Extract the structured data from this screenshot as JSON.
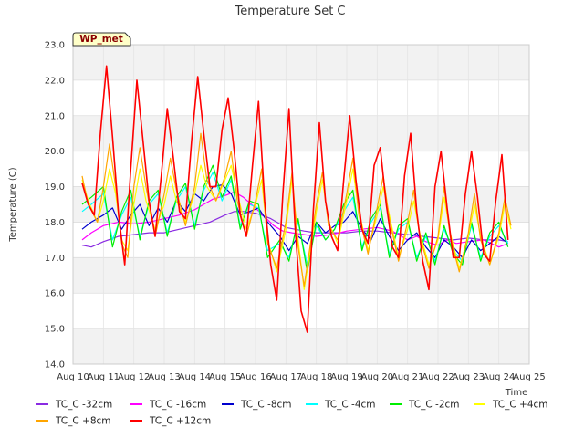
{
  "chart_data": {
    "type": "line",
    "title": "Temperature Set C",
    "xlabel": "Time",
    "ylabel": "Temperature (C)",
    "badge": "WP_met",
    "ylim": [
      14.0,
      23.0
    ],
    "yticks": [
      "14.0",
      "15.0",
      "16.0",
      "17.0",
      "18.0",
      "19.0",
      "20.0",
      "21.0",
      "22.0",
      "23.0"
    ],
    "xlim": [
      10,
      25
    ],
    "xticks": [
      {
        "v": 10,
        "label": "Aug 10"
      },
      {
        "v": 11,
        "label": "Aug 11"
      },
      {
        "v": 12,
        "label": "Aug 12"
      },
      {
        "v": 13,
        "label": "Aug 13"
      },
      {
        "v": 14,
        "label": "Aug 14"
      },
      {
        "v": 15,
        "label": "Aug 15"
      },
      {
        "v": 16,
        "label": "Aug 16"
      },
      {
        "v": 17,
        "label": "Aug 17"
      },
      {
        "v": 18,
        "label": "Aug 18"
      },
      {
        "v": 19,
        "label": "Aug 19"
      },
      {
        "v": 20,
        "label": "Aug 20"
      },
      {
        "v": 21,
        "label": "Aug 21"
      },
      {
        "v": 22,
        "label": "Aug 22"
      },
      {
        "v": 23,
        "label": "Aug 23"
      },
      {
        "v": 24,
        "label": "Aug 24"
      },
      {
        "v": 25,
        "label": "Aug 25"
      }
    ],
    "grid": true,
    "band_colors": [
      "#f2f2f2",
      "#ffffff"
    ],
    "legend_position": "bottom",
    "series": [
      {
        "name": "TC_C -32cm",
        "color": "#8a2be2",
        "x": [
          10.3,
          10.6,
          11.0,
          11.5,
          12.0,
          12.5,
          13.0,
          13.5,
          14.0,
          14.5,
          15.0,
          15.3,
          15.6,
          16.0,
          16.2,
          16.5,
          16.8,
          17.0,
          17.3,
          17.6,
          18.0,
          18.5,
          19.0,
          19.5,
          20.0,
          20.5,
          21.0,
          21.5,
          22.0,
          22.5,
          23.0,
          23.5,
          24.0,
          24.3
        ],
        "y": [
          17.35,
          17.3,
          17.45,
          17.6,
          17.65,
          17.7,
          17.7,
          17.8,
          17.9,
          18.0,
          18.2,
          18.3,
          18.3,
          18.25,
          18.2,
          18.1,
          17.95,
          17.85,
          17.8,
          17.75,
          17.7,
          17.7,
          17.7,
          17.75,
          17.75,
          17.7,
          17.65,
          17.6,
          17.55,
          17.5,
          17.55,
          17.5,
          17.5,
          17.45
        ]
      },
      {
        "name": "TC_C -16cm",
        "color": "#ff00ff",
        "x": [
          10.3,
          10.6,
          11.0,
          11.5,
          12.0,
          12.5,
          13.0,
          13.5,
          14.0,
          14.3,
          14.6,
          15.0,
          15.3,
          15.6,
          16.0,
          16.3,
          16.6,
          16.9,
          17.2,
          17.6,
          18.0,
          18.5,
          19.0,
          19.5,
          20.0,
          20.5,
          21.0,
          21.3,
          21.6,
          22.0,
          22.3,
          22.6,
          23.0,
          23.5,
          24.0,
          24.3
        ],
        "y": [
          17.5,
          17.7,
          17.9,
          18.0,
          17.95,
          18.0,
          18.1,
          18.2,
          18.35,
          18.5,
          18.65,
          18.75,
          18.85,
          18.7,
          18.4,
          18.15,
          17.9,
          17.75,
          17.7,
          17.65,
          17.6,
          17.65,
          17.75,
          17.8,
          17.85,
          17.75,
          17.5,
          17.6,
          17.45,
          17.35,
          17.5,
          17.4,
          17.45,
          17.5,
          17.3,
          17.4
        ]
      },
      {
        "name": "TC_C -8cm",
        "color": "#0000cd",
        "x": [
          10.3,
          10.6,
          11.0,
          11.3,
          11.6,
          11.9,
          12.2,
          12.5,
          12.8,
          13.1,
          13.4,
          13.7,
          14.0,
          14.3,
          14.6,
          14.9,
          15.2,
          15.5,
          15.8,
          16.1,
          16.4,
          16.8,
          17.1,
          17.4,
          17.7,
          18.0,
          18.3,
          18.6,
          18.9,
          19.2,
          19.5,
          19.8,
          20.1,
          20.4,
          20.7,
          21.0,
          21.3,
          21.6,
          21.9,
          22.2,
          22.5,
          22.8,
          23.1,
          23.4,
          23.7,
          24.0,
          24.3
        ],
        "y": [
          17.8,
          18.0,
          18.2,
          18.4,
          17.8,
          18.2,
          18.5,
          17.9,
          18.4,
          18.0,
          18.6,
          18.3,
          18.8,
          18.6,
          19.0,
          19.05,
          18.8,
          18.2,
          18.3,
          18.4,
          18.0,
          17.6,
          17.2,
          17.6,
          17.4,
          18.0,
          17.7,
          17.9,
          18.0,
          18.3,
          17.8,
          17.5,
          18.1,
          17.6,
          17.2,
          17.5,
          17.7,
          17.3,
          17.0,
          17.5,
          17.3,
          17.0,
          17.5,
          17.2,
          17.4,
          17.6,
          17.4
        ]
      },
      {
        "name": "TC_C -4cm",
        "color": "#00ffff",
        "x": [
          10.3,
          10.6,
          11.0,
          11.3,
          11.6,
          11.9,
          12.2,
          12.5,
          12.8,
          13.1,
          13.4,
          13.7,
          14.0,
          14.3,
          14.6,
          14.9,
          15.2,
          15.5,
          15.8,
          16.1,
          16.4,
          16.8,
          17.1,
          17.4,
          17.7,
          18.0,
          18.3,
          18.6,
          18.9,
          19.2,
          19.5,
          19.8,
          20.1,
          20.4,
          20.7,
          21.0,
          21.3,
          21.6,
          21.9,
          22.2,
          22.5,
          22.8,
          23.1,
          23.4,
          23.7,
          24.0,
          24.3
        ],
        "y": [
          18.3,
          18.5,
          18.8,
          17.5,
          18.2,
          18.7,
          17.6,
          18.5,
          18.8,
          17.7,
          18.6,
          19.0,
          17.9,
          18.9,
          19.4,
          18.6,
          19.2,
          17.9,
          18.5,
          18.4,
          17.2,
          17.4,
          17.0,
          18.0,
          16.8,
          17.9,
          17.5,
          17.8,
          18.3,
          18.7,
          17.3,
          18.0,
          18.4,
          17.1,
          17.8,
          18.0,
          17.0,
          17.6,
          16.9,
          17.8,
          17.2,
          16.9,
          17.9,
          17.0,
          17.6,
          17.9,
          17.4
        ]
      },
      {
        "name": "TC_C -2cm",
        "color": "#00ee00",
        "x": [
          10.3,
          10.6,
          11.0,
          11.3,
          11.6,
          11.9,
          12.2,
          12.5,
          12.8,
          13.1,
          13.4,
          13.7,
          14.0,
          14.3,
          14.6,
          14.9,
          15.2,
          15.5,
          15.8,
          16.1,
          16.4,
          16.8,
          17.1,
          17.4,
          17.7,
          18.0,
          18.3,
          18.6,
          18.9,
          19.2,
          19.5,
          19.8,
          20.1,
          20.4,
          20.7,
          21.0,
          21.3,
          21.6,
          21.9,
          22.2,
          22.5,
          22.8,
          23.1,
          23.4,
          23.7,
          24.0,
          24.3
        ],
        "y": [
          18.5,
          18.7,
          19.0,
          17.3,
          18.3,
          18.9,
          17.5,
          18.6,
          18.9,
          17.6,
          18.7,
          19.1,
          17.8,
          19.0,
          19.6,
          18.7,
          19.3,
          17.8,
          18.6,
          18.5,
          17.0,
          17.5,
          16.9,
          18.1,
          16.6,
          18.0,
          17.5,
          17.8,
          18.5,
          18.9,
          17.2,
          18.1,
          18.5,
          17.0,
          17.9,
          18.1,
          16.9,
          17.7,
          16.8,
          17.9,
          17.1,
          16.8,
          18.0,
          16.9,
          17.7,
          18.0,
          17.3
        ]
      },
      {
        "name": "TC_C +4cm",
        "color": "#ffff00",
        "x": [
          10.3,
          10.5,
          10.8,
          11.0,
          11.2,
          11.4,
          11.6,
          11.8,
          12.0,
          12.2,
          12.4,
          12.7,
          13.0,
          13.2,
          13.4,
          13.7,
          14.0,
          14.2,
          14.4,
          14.7,
          15.0,
          15.2,
          15.4,
          15.7,
          16.0,
          16.2,
          16.4,
          16.7,
          17.0,
          17.2,
          17.4,
          17.6,
          18.0,
          18.2,
          18.4,
          18.7,
          19.0,
          19.2,
          19.4,
          19.7,
          20.0,
          20.2,
          20.4,
          20.7,
          21.0,
          21.2,
          21.4,
          21.7,
          22.0,
          22.2,
          22.4,
          22.7,
          23.0,
          23.2,
          23.4,
          23.7,
          24.0,
          24.2,
          24.4
        ],
        "y": [
          19.2,
          18.6,
          18.0,
          18.6,
          19.5,
          18.8,
          17.5,
          17.2,
          18.5,
          19.5,
          18.6,
          17.8,
          18.5,
          19.3,
          18.6,
          18.0,
          18.8,
          19.6,
          19.0,
          18.6,
          19.2,
          19.6,
          18.8,
          17.8,
          18.5,
          19.2,
          17.5,
          16.6,
          17.8,
          19.2,
          17.5,
          16.1,
          18.3,
          19.2,
          18.0,
          17.4,
          18.6,
          19.5,
          18.3,
          17.2,
          18.2,
          19.0,
          18.2,
          17.0,
          17.8,
          18.6,
          17.7,
          16.8,
          17.5,
          18.7,
          17.7,
          16.7,
          17.6,
          18.5,
          17.6,
          16.8,
          17.6,
          18.5,
          17.8
        ]
      },
      {
        "name": "TC_C +8cm",
        "color": "#ffa500",
        "x": [
          10.3,
          10.5,
          10.8,
          11.0,
          11.2,
          11.4,
          11.6,
          11.8,
          12.0,
          12.2,
          12.4,
          12.7,
          13.0,
          13.2,
          13.4,
          13.7,
          14.0,
          14.2,
          14.4,
          14.7,
          15.0,
          15.2,
          15.4,
          15.7,
          16.0,
          16.2,
          16.4,
          16.7,
          17.0,
          17.2,
          17.4,
          17.6,
          18.0,
          18.2,
          18.4,
          18.7,
          19.0,
          19.2,
          19.4,
          19.7,
          20.0,
          20.2,
          20.4,
          20.7,
          21.0,
          21.2,
          21.4,
          21.7,
          22.0,
          22.2,
          22.4,
          22.7,
          23.0,
          23.2,
          23.4,
          23.7,
          24.0,
          24.2,
          24.4
        ],
        "y": [
          19.3,
          18.5,
          18.0,
          19.0,
          20.2,
          19.0,
          17.4,
          17.0,
          19.0,
          20.1,
          19.0,
          17.6,
          18.8,
          19.8,
          18.9,
          17.9,
          19.0,
          20.5,
          19.2,
          18.6,
          19.3,
          20.0,
          18.6,
          17.6,
          18.6,
          19.5,
          17.4,
          16.7,
          18.0,
          19.4,
          17.3,
          16.2,
          18.5,
          19.4,
          17.9,
          17.5,
          18.8,
          19.8,
          18.2,
          17.1,
          18.4,
          19.3,
          18.1,
          16.9,
          18.0,
          18.9,
          17.6,
          16.7,
          17.6,
          19.0,
          17.6,
          16.6,
          17.7,
          18.8,
          17.5,
          16.8,
          17.7,
          18.7,
          17.9
        ]
      },
      {
        "name": "TC_C +12cm",
        "color": "#ff0000",
        "x": [
          10.3,
          10.5,
          10.7,
          10.9,
          11.1,
          11.3,
          11.5,
          11.7,
          11.9,
          12.1,
          12.3,
          12.5,
          12.7,
          12.9,
          13.1,
          13.3,
          13.5,
          13.7,
          13.9,
          14.1,
          14.3,
          14.5,
          14.7,
          14.9,
          15.1,
          15.3,
          15.5,
          15.7,
          15.9,
          16.1,
          16.3,
          16.5,
          16.7,
          16.9,
          17.1,
          17.3,
          17.5,
          17.7,
          17.9,
          18.1,
          18.3,
          18.5,
          18.7,
          18.9,
          19.1,
          19.3,
          19.5,
          19.7,
          19.9,
          20.1,
          20.3,
          20.5,
          20.7,
          20.9,
          21.1,
          21.3,
          21.5,
          21.7,
          21.9,
          22.1,
          22.3,
          22.5,
          22.7,
          22.9,
          23.1,
          23.3,
          23.5,
          23.7,
          23.9,
          24.1,
          24.3
        ],
        "y": [
          19.1,
          18.5,
          18.2,
          20.5,
          22.4,
          20.4,
          18.2,
          16.8,
          19.5,
          22.0,
          20.3,
          18.6,
          17.6,
          19.3,
          21.2,
          19.8,
          18.3,
          18.1,
          20.3,
          22.1,
          20.5,
          19.0,
          19.0,
          20.6,
          21.5,
          20.0,
          18.2,
          17.6,
          19.6,
          21.4,
          18.6,
          16.8,
          15.8,
          18.8,
          21.2,
          17.9,
          15.5,
          14.9,
          18.3,
          20.8,
          18.6,
          17.6,
          17.2,
          19.2,
          21.0,
          19.2,
          17.8,
          17.4,
          19.6,
          20.1,
          18.5,
          17.3,
          17.0,
          19.3,
          20.5,
          18.3,
          16.9,
          16.1,
          19.0,
          20.0,
          18.4,
          17.0,
          17.0,
          18.8,
          20.0,
          18.7,
          17.1,
          16.9,
          18.6,
          19.9,
          17.5
        ]
      }
    ]
  }
}
